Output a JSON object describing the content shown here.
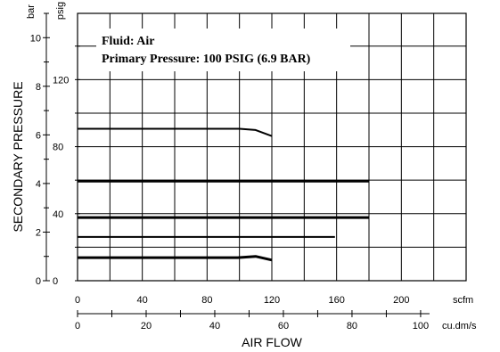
{
  "chart_data": {
    "type": "line",
    "legend": {
      "fluid": "Fluid:  Air",
      "primary_pressure": "Primary Pressure:  100 PSIG (6.9 BAR)",
      "placement": "top-left"
    },
    "ylabel": "SECONDARY  PRESSURE",
    "xlabel": "AIR  FLOW",
    "y_units": {
      "bar": "bar",
      "psig": "psig"
    },
    "x_units": {
      "scfm": "scfm",
      "cudms": "cu.dm/s"
    },
    "bar_axis": {
      "range": [
        0,
        11
      ],
      "ticks": [
        0,
        2,
        4,
        6,
        8,
        10
      ],
      "minor": [
        1,
        3,
        5,
        7,
        9,
        11
      ]
    },
    "psig_axis": {
      "ticks": [
        0,
        40,
        80,
        120
      ],
      "minor": [
        20,
        60,
        100,
        140
      ]
    },
    "scfm_axis": {
      "range": [
        0,
        240
      ],
      "ticks": [
        0,
        40,
        80,
        120,
        160,
        200
      ]
    },
    "cudms_axis": {
      "ticks": [
        0,
        20,
        40,
        60,
        80,
        100
      ]
    },
    "grid": true,
    "series": [
      {
        "points": [
          [
            0,
            0.95
          ],
          [
            99,
            0.95
          ],
          [
            110,
            1.0
          ],
          [
            120,
            0.85
          ]
        ],
        "weight": "heavy"
      },
      {
        "points": [
          [
            0,
            1.8
          ],
          [
            159,
            1.8
          ]
        ],
        "weight": "medium"
      },
      {
        "points": [
          [
            0,
            2.6
          ],
          [
            180,
            2.6
          ]
        ],
        "weight": "heavy"
      },
      {
        "points": [
          [
            0,
            4.1
          ],
          [
            180,
            4.1
          ]
        ],
        "weight": "heavy"
      },
      {
        "points": [
          [
            0,
            6.25
          ],
          [
            100,
            6.25
          ],
          [
            110,
            6.2
          ],
          [
            120,
            5.95
          ]
        ],
        "weight": "medium"
      }
    ]
  }
}
